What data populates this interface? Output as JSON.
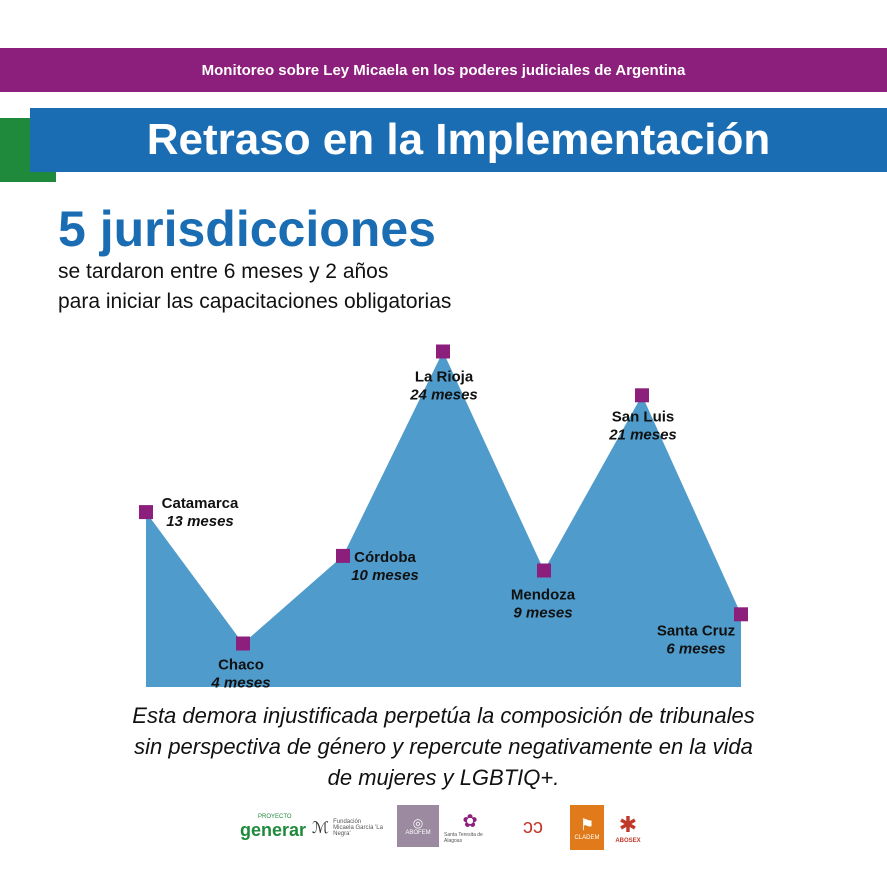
{
  "header": {
    "banner": "Monitoreo sobre Ley Micaela en los poderes judiciales de Argentina",
    "title": "Retraso en la Implementación"
  },
  "intro": {
    "headline": "5 jurisdicciones",
    "line1": "se tardaron entre 6 meses y 2 años",
    "line2": "para iniciar las capacitaciones obligatorias"
  },
  "chart_data": {
    "type": "area",
    "unit": "meses",
    "categories": [
      "Catamarca",
      "Chaco",
      "Córdoba",
      "La Rioja",
      "Mendoza",
      "San Luis",
      "Santa Cruz"
    ],
    "values": [
      13,
      4,
      10,
      24,
      9,
      21,
      6
    ],
    "value_labels": [
      "13 meses",
      "4 meses",
      "10 meses",
      "24 meses",
      "9 meses",
      "21 meses",
      "6 meses"
    ],
    "ylim": [
      0,
      24
    ],
    "grid": false,
    "colors": {
      "area": "#4f9bcb",
      "marker": "#8c1e7c"
    }
  },
  "footer": {
    "text_line1": "Esta demora injustificada perpetúa la composición de tribunales",
    "text_line2": "sin perspectiva de género y repercute negativamente en la vida",
    "text_line3": "de mujeres y LGBTIQ+."
  },
  "logos": {
    "generar": "generar",
    "generar_top": "PROYECTO",
    "fundacion": "Micaela García 'La Negra'",
    "fundacion_top": "Fundación",
    "abofem": "ABOFEM",
    "santa_teresa": "Santa Teresita de Alagoas",
    "cladem": "CLADEM",
    "abosex": "ABOSEX"
  }
}
